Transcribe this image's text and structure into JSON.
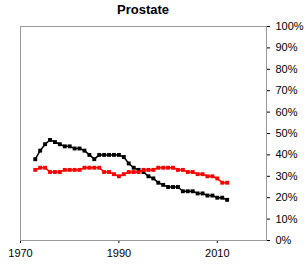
{
  "chart_data": {
    "type": "line",
    "title": "Prostate",
    "x": [
      1973,
      1974,
      1975,
      1976,
      1977,
      1978,
      1979,
      1980,
      1981,
      1982,
      1983,
      1984,
      1985,
      1986,
      1987,
      1988,
      1989,
      1990,
      1991,
      1992,
      1993,
      1994,
      1995,
      1996,
      1997,
      1998,
      1999,
      2000,
      2001,
      2002,
      2003,
      2004,
      2005,
      2006,
      2007,
      2008,
      2009,
      2010,
      2011,
      2012
    ],
    "series": [
      {
        "color": "#000000",
        "marker": "square",
        "values": [
          38,
          42,
          45,
          47,
          46,
          45,
          44,
          44,
          43,
          43,
          42,
          40,
          38,
          40,
          40,
          40,
          40,
          40,
          39,
          36,
          34,
          33,
          32,
          30,
          29,
          27,
          26,
          25,
          25,
          25,
          23,
          23,
          23,
          22,
          22,
          21,
          21,
          20,
          20,
          19
        ]
      },
      {
        "color": "#ff0000",
        "marker": "square",
        "values": [
          33,
          34,
          34,
          32,
          32,
          32,
          33,
          33,
          33,
          33,
          34,
          34,
          34,
          34,
          32,
          32,
          31,
          30,
          31,
          32,
          32,
          32,
          33,
          33,
          33,
          34,
          34,
          34,
          34,
          33,
          33,
          32,
          32,
          31,
          31,
          30,
          30,
          29,
          27,
          27
        ]
      }
    ],
    "xlim": [
      1970,
      2020
    ],
    "xticks": [
      1970,
      1990,
      2010
    ],
    "ylim": [
      0,
      100
    ],
    "yticks": [
      {
        "value": 0,
        "label": "0%"
      },
      {
        "value": 10,
        "label": "10%"
      },
      {
        "value": 20,
        "label": "20%"
      },
      {
        "value": 30,
        "label": "30%"
      },
      {
        "value": 40,
        "label": "40%"
      },
      {
        "value": 50,
        "label": "50%"
      },
      {
        "value": 60,
        "label": "60%"
      },
      {
        "value": 70,
        "label": "70%"
      },
      {
        "value": 80,
        "label": "80%"
      },
      {
        "value": 90,
        "label": "90%"
      },
      {
        "value": 100,
        "label": "100%"
      }
    ],
    "grid": false
  }
}
